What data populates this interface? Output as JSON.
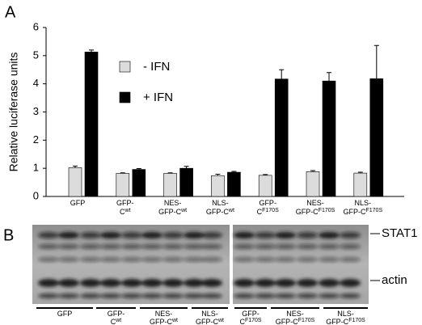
{
  "chart_data": {
    "type": "bar",
    "panel_label": "A",
    "ylabel": "Relative luciferase units",
    "categories": [
      {
        "lines": [
          "GFP"
        ]
      },
      {
        "lines": [
          "GFP-",
          "C"
        ],
        "sup": "wt"
      },
      {
        "lines": [
          "NES-",
          "GFP-C"
        ],
        "sup": "wt"
      },
      {
        "lines": [
          "NLS-",
          "GFP-C"
        ],
        "sup": "wt"
      },
      {
        "lines": [
          "GFP-",
          "C"
        ],
        "sup": "F170S"
      },
      {
        "lines": [
          "NES-",
          "GFP-C"
        ],
        "sup": "F170S"
      },
      {
        "lines": [
          "NLS-",
          "GFP-C"
        ],
        "sup": "F170S"
      }
    ],
    "series": [
      {
        "name": "- IFN",
        "color": "#dcdcdc",
        "values": [
          1.02,
          0.82,
          0.82,
          0.74,
          0.75,
          0.88,
          0.83
        ],
        "errors": [
          0.06,
          0.02,
          0.02,
          0.05,
          0.03,
          0.04,
          0.03
        ]
      },
      {
        "name": "+ IFN",
        "color": "#000000",
        "values": [
          5.13,
          0.96,
          1.0,
          0.86,
          4.17,
          4.1,
          4.18
        ],
        "errors": [
          0.07,
          0.03,
          0.07,
          0.03,
          0.33,
          0.3,
          1.18
        ]
      }
    ],
    "ylim": [
      0,
      6
    ],
    "yticks": [
      0,
      1,
      2,
      3,
      4,
      5,
      6
    ]
  },
  "blot": {
    "panel_label": "B",
    "markers": [
      "STAT1",
      "actin"
    ],
    "groups": [
      {
        "lines": [
          "GFP"
        ]
      },
      {
        "lines": [
          "GFP-",
          "C"
        ],
        "sup": "wt"
      },
      {
        "lines": [
          "NES-",
          "GFP-C"
        ],
        "sup": "wt"
      },
      {
        "lines": [
          "NLS-",
          "GFP-C"
        ],
        "sup": "wt"
      },
      {
        "lines": [
          "GFP-",
          "C"
        ],
        "sup": "F170S"
      },
      {
        "lines": [
          "NES-",
          "GFP-C"
        ],
        "sup": "F170S"
      },
      {
        "lines": [
          "NLS-",
          "GFP-C"
        ],
        "sup": "F170S"
      }
    ]
  }
}
